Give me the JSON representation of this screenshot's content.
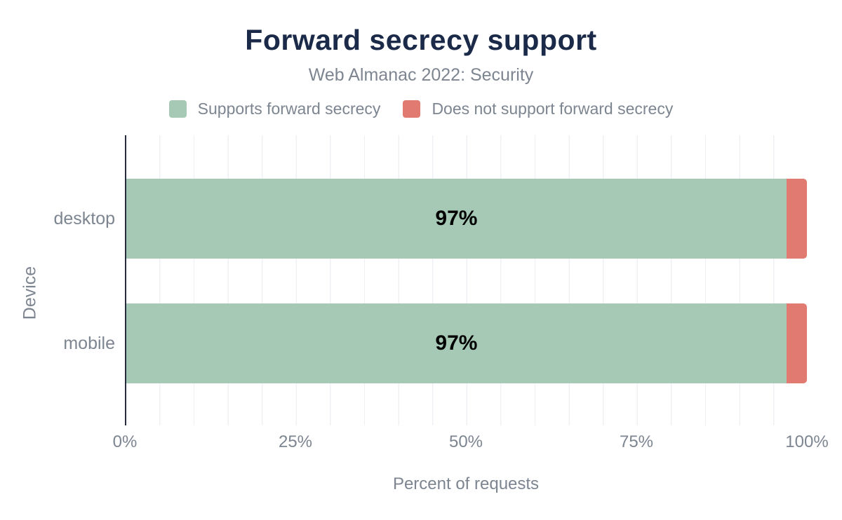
{
  "chart_data": {
    "type": "bar",
    "orientation": "horizontal",
    "stacked": true,
    "title": "Forward secrecy support",
    "subtitle": "Web Almanac 2022: Security",
    "xlabel": "Percent of requests",
    "ylabel": "Device",
    "categories": [
      "desktop",
      "mobile"
    ],
    "series": [
      {
        "name": "Supports forward secrecy",
        "color": "#a5c9b5",
        "values": [
          97,
          97
        ]
      },
      {
        "name": "Does not support forward secrecy",
        "color": "#e17b71",
        "values": [
          3,
          3
        ]
      }
    ],
    "bar_labels": [
      "97%",
      "97%"
    ],
    "x_ticks": [
      {
        "label": "0%",
        "value": 0
      },
      {
        "label": "25%",
        "value": 25
      },
      {
        "label": "50%",
        "value": 50
      },
      {
        "label": "75%",
        "value": 75
      },
      {
        "label": "100%",
        "value": 100
      }
    ],
    "xlim": [
      0,
      100
    ],
    "grid": {
      "vertical_interval_percent": 5
    },
    "legend_position": "top"
  },
  "colors": {
    "background": "#ffffff",
    "title": "#1b2a49",
    "text_gray": "#7d8590",
    "gridline": "#eff0f3",
    "axis_line": "#262b3d",
    "bar_label": "#000000"
  }
}
